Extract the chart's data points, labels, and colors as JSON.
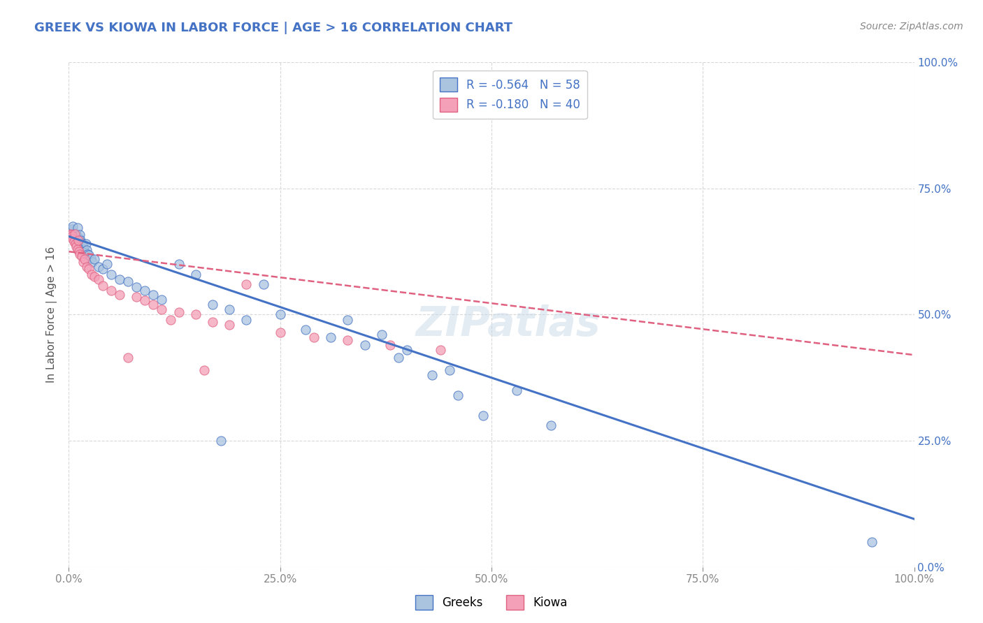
{
  "title": "GREEK VS KIOWA IN LABOR FORCE | AGE > 16 CORRELATION CHART",
  "ylabel": "In Labor Force | Age > 16",
  "source_text": "Source: ZipAtlas.com",
  "legend_entries": [
    {
      "label": "Greeks",
      "R": "-0.564",
      "N": "58",
      "color": "#aac4e0",
      "line_color": "#4472c4"
    },
    {
      "label": "Kiowa",
      "R": "-0.180",
      "N": "40",
      "color": "#f4a0b8",
      "line_color": "#e06080"
    }
  ],
  "xlim": [
    0.0,
    1.0
  ],
  "ylim": [
    0.0,
    1.0
  ],
  "xticks": [
    0.0,
    0.25,
    0.5,
    0.75,
    1.0
  ],
  "yticks": [
    0.0,
    0.25,
    0.5,
    0.75,
    1.0
  ],
  "xticklabels": [
    "0.0%",
    "25.0%",
    "50.0%",
    "75.0%",
    "100.0%"
  ],
  "yticklabels_right": [
    "0.0%",
    "25.0%",
    "50.0%",
    "75.0%",
    "100.0%"
  ],
  "background_color": "#ffffff",
  "grid_color": "#d8d8d8",
  "title_color": "#4472c4",
  "axis_label_color": "#555555",
  "tick_color": "#888888",
  "blue_line_start_y": 0.655,
  "blue_line_end_y": 0.095,
  "pink_line_start_y": 0.625,
  "pink_line_end_y": 0.42,
  "blue_scatter_x": [
    0.002,
    0.003,
    0.004,
    0.005,
    0.006,
    0.007,
    0.008,
    0.009,
    0.01,
    0.01,
    0.011,
    0.012,
    0.013,
    0.014,
    0.015,
    0.016,
    0.017,
    0.018,
    0.019,
    0.02,
    0.021,
    0.022,
    0.024,
    0.026,
    0.028,
    0.03,
    0.035,
    0.04,
    0.045,
    0.05,
    0.06,
    0.07,
    0.08,
    0.09,
    0.1,
    0.11,
    0.13,
    0.15,
    0.17,
    0.19,
    0.21,
    0.23,
    0.25,
    0.28,
    0.31,
    0.35,
    0.39,
    0.43,
    0.46,
    0.49,
    0.33,
    0.37,
    0.4,
    0.45,
    0.53,
    0.57,
    0.95,
    0.18
  ],
  "blue_scatter_y": [
    0.66,
    0.665,
    0.67,
    0.675,
    0.66,
    0.65,
    0.655,
    0.66,
    0.648,
    0.672,
    0.645,
    0.652,
    0.658,
    0.648,
    0.642,
    0.638,
    0.635,
    0.63,
    0.625,
    0.64,
    0.628,
    0.62,
    0.618,
    0.612,
    0.605,
    0.61,
    0.595,
    0.59,
    0.6,
    0.58,
    0.57,
    0.565,
    0.555,
    0.548,
    0.54,
    0.53,
    0.6,
    0.58,
    0.52,
    0.51,
    0.49,
    0.56,
    0.5,
    0.47,
    0.455,
    0.44,
    0.415,
    0.38,
    0.34,
    0.3,
    0.49,
    0.46,
    0.43,
    0.39,
    0.35,
    0.28,
    0.05,
    0.25
  ],
  "pink_scatter_x": [
    0.002,
    0.003,
    0.004,
    0.005,
    0.006,
    0.007,
    0.008,
    0.009,
    0.01,
    0.011,
    0.012,
    0.013,
    0.015,
    0.017,
    0.019,
    0.021,
    0.024,
    0.027,
    0.03,
    0.035,
    0.04,
    0.05,
    0.06,
    0.07,
    0.08,
    0.09,
    0.1,
    0.11,
    0.12,
    0.13,
    0.15,
    0.17,
    0.19,
    0.21,
    0.25,
    0.29,
    0.33,
    0.38,
    0.44,
    0.16
  ],
  "pink_scatter_y": [
    0.66,
    0.658,
    0.655,
    0.65,
    0.645,
    0.66,
    0.64,
    0.635,
    0.63,
    0.648,
    0.625,
    0.62,
    0.615,
    0.605,
    0.61,
    0.595,
    0.59,
    0.58,
    0.575,
    0.57,
    0.558,
    0.548,
    0.54,
    0.415,
    0.535,
    0.528,
    0.52,
    0.51,
    0.49,
    0.505,
    0.5,
    0.485,
    0.48,
    0.56,
    0.465,
    0.455,
    0.45,
    0.44,
    0.43,
    0.39
  ]
}
